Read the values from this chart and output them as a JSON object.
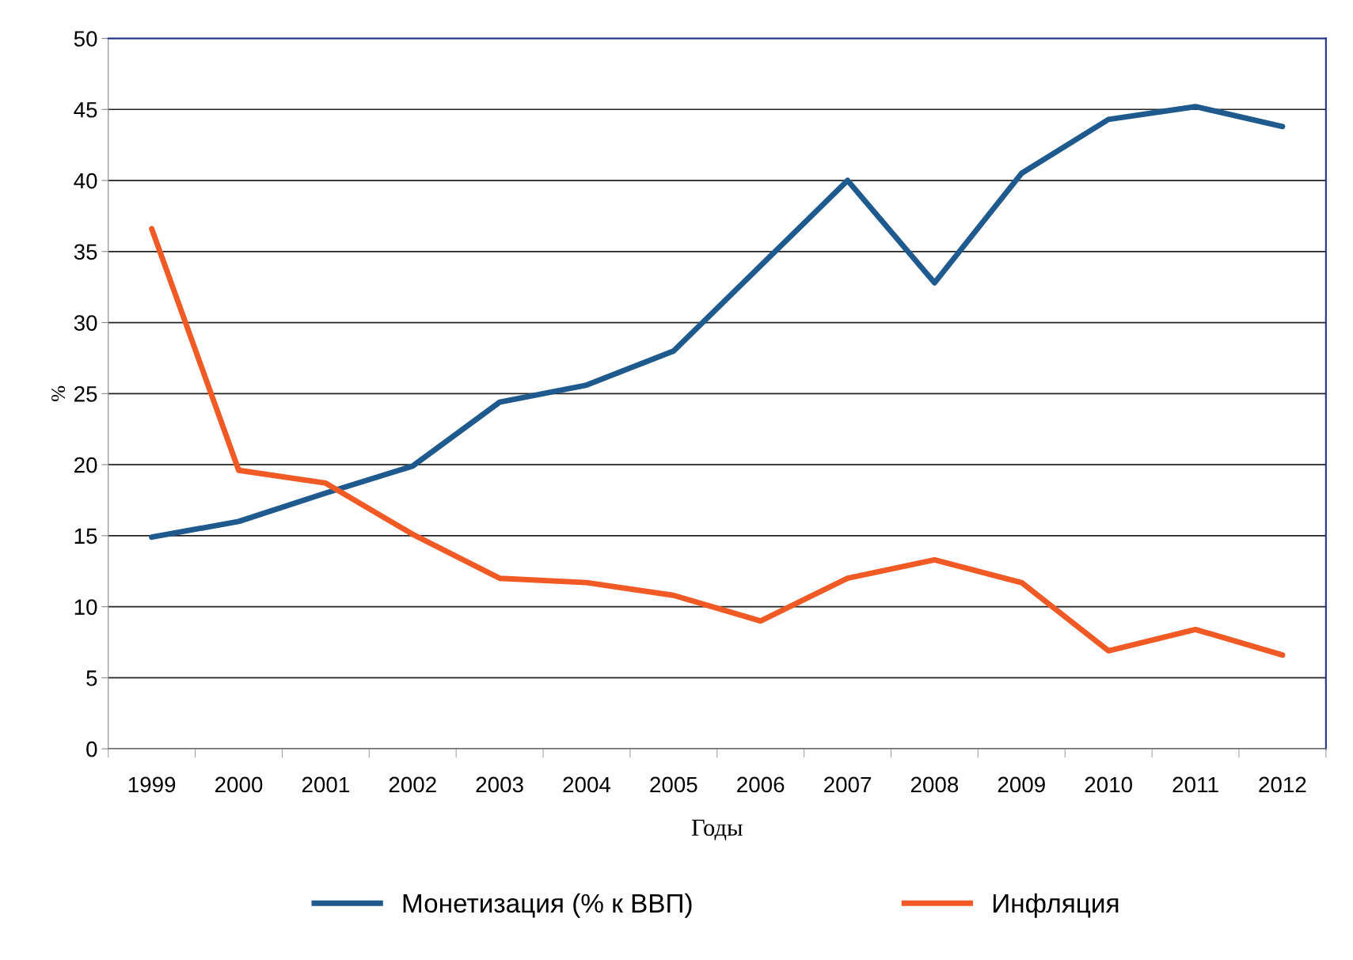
{
  "chart_data": {
    "type": "line",
    "xlabel": "Годы",
    "ylabel": "%",
    "categories": [
      "1999",
      "2000",
      "2001",
      "2002",
      "2003",
      "2004",
      "2005",
      "2006",
      "2007",
      "2008",
      "2009",
      "2010",
      "2011",
      "2012"
    ],
    "series": [
      {
        "name": "Монетизация (% к ВВП)",
        "color": "#1f5a8f",
        "values": [
          14.9,
          16,
          18,
          19.9,
          24.4,
          25.6,
          28,
          34,
          40,
          32.8,
          40.5,
          44.3,
          45.2,
          43.8
        ]
      },
      {
        "name": "Инфляция",
        "color": "#f15a24",
        "values": [
          36.6,
          19.6,
          18.7,
          15.1,
          12,
          11.7,
          10.8,
          9,
          12,
          13.3,
          11.7,
          6.9,
          8.4,
          6.6
        ]
      }
    ],
    "ylim": [
      0,
      50
    ],
    "yticks": [
      0,
      5,
      10,
      15,
      20,
      25,
      30,
      35,
      40,
      45,
      50
    ],
    "grid": "y",
    "legend": "bottom",
    "marker": "none",
    "line_style": "solid"
  }
}
